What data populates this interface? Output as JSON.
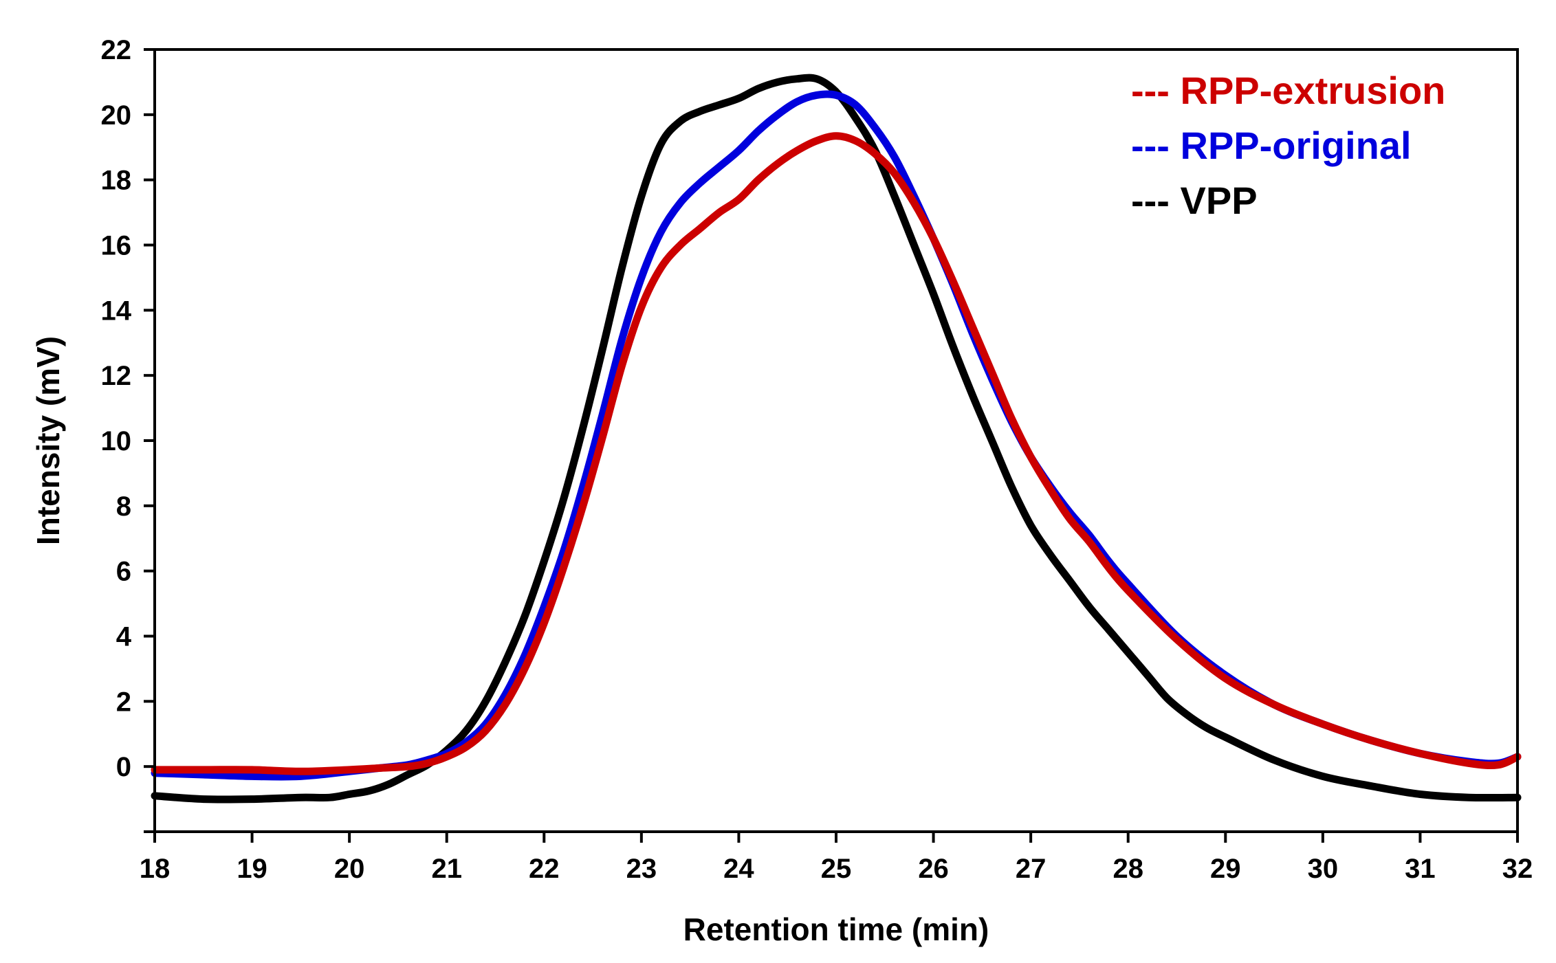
{
  "chart_data": {
    "type": "line",
    "title": "",
    "xlabel": "Retention time (min)",
    "ylabel": "Intensity (mV)",
    "xlim": [
      18,
      32
    ],
    "ylim": [
      -2,
      22
    ],
    "xticks": [
      18,
      19,
      20,
      21,
      22,
      23,
      24,
      25,
      26,
      27,
      28,
      29,
      30,
      31,
      32
    ],
    "yticks": [
      0,
      2,
      4,
      6,
      8,
      10,
      12,
      14,
      16,
      18,
      20,
      22
    ],
    "grid": false,
    "legend_position": "top-right",
    "series": [
      {
        "name": "VPP",
        "legend_label": "--- VPP",
        "color": "#000000",
        "x": [
          18,
          18.5,
          19,
          19.5,
          19.8,
          20,
          20.2,
          20.4,
          20.6,
          20.8,
          21,
          21.2,
          21.4,
          21.6,
          21.8,
          22,
          22.2,
          22.4,
          22.6,
          22.8,
          23,
          23.2,
          23.4,
          23.6,
          23.8,
          24,
          24.2,
          24.4,
          24.6,
          24.8,
          25,
          25.2,
          25.4,
          25.6,
          25.8,
          26,
          26.2,
          26.4,
          26.6,
          26.8,
          27,
          27.2,
          27.4,
          27.6,
          27.8,
          28,
          28.2,
          28.4,
          28.6,
          28.8,
          29,
          29.5,
          30,
          30.5,
          31,
          31.5,
          32
        ],
        "y": [
          -0.9,
          -1.0,
          -1.0,
          -0.95,
          -0.95,
          -0.85,
          -0.75,
          -0.55,
          -0.25,
          0.05,
          0.5,
          1.1,
          2.0,
          3.2,
          4.6,
          6.3,
          8.2,
          10.4,
          12.8,
          15.3,
          17.5,
          19.1,
          19.8,
          20.1,
          20.3,
          20.5,
          20.8,
          21.0,
          21.1,
          21.1,
          20.7,
          19.9,
          18.9,
          17.5,
          16.0,
          14.5,
          12.9,
          11.4,
          10.0,
          8.6,
          7.4,
          6.5,
          5.7,
          4.9,
          4.2,
          3.5,
          2.8,
          2.1,
          1.6,
          1.2,
          0.9,
          0.2,
          -0.3,
          -0.6,
          -0.85,
          -0.95,
          -0.95
        ]
      },
      {
        "name": "RPP-original",
        "legend_label": "--- RPP-original",
        "color": "#0000dd",
        "x": [
          18,
          18.5,
          19,
          19.5,
          20,
          20.3,
          20.6,
          20.8,
          21,
          21.2,
          21.4,
          21.6,
          21.8,
          22,
          22.2,
          22.4,
          22.6,
          22.8,
          23,
          23.2,
          23.4,
          23.6,
          23.8,
          24,
          24.2,
          24.4,
          24.6,
          24.8,
          25,
          25.2,
          25.4,
          25.6,
          25.8,
          26,
          26.2,
          26.4,
          26.6,
          26.8,
          27,
          27.2,
          27.4,
          27.6,
          27.8,
          28,
          28.5,
          29,
          29.5,
          30,
          30.5,
          31,
          31.5,
          31.8,
          32
        ],
        "y": [
          -0.2,
          -0.25,
          -0.3,
          -0.3,
          -0.15,
          -0.05,
          0.05,
          0.2,
          0.4,
          0.75,
          1.3,
          2.2,
          3.4,
          4.9,
          6.6,
          8.6,
          10.8,
          13.1,
          15.0,
          16.4,
          17.3,
          17.9,
          18.4,
          18.9,
          19.5,
          20.0,
          20.4,
          20.6,
          20.6,
          20.3,
          19.6,
          18.7,
          17.5,
          16.2,
          14.8,
          13.3,
          11.9,
          10.6,
          9.5,
          8.6,
          7.8,
          7.1,
          6.3,
          5.6,
          4.0,
          2.8,
          1.9,
          1.3,
          0.8,
          0.4,
          0.15,
          0.1,
          0.3
        ]
      },
      {
        "name": "RPP-extrusion",
        "legend_label": "--- RPP-extrusion",
        "color": "#cc0000",
        "x": [
          18,
          18.5,
          19,
          19.5,
          20,
          20.3,
          20.6,
          20.8,
          21,
          21.2,
          21.4,
          21.6,
          21.8,
          22,
          22.2,
          22.4,
          22.6,
          22.8,
          23,
          23.2,
          23.4,
          23.6,
          23.8,
          24,
          24.2,
          24.4,
          24.6,
          24.8,
          25,
          25.2,
          25.4,
          25.6,
          25.8,
          26,
          26.2,
          26.4,
          26.6,
          26.8,
          27,
          27.2,
          27.4,
          27.6,
          27.8,
          28,
          28.5,
          29,
          29.5,
          30,
          30.5,
          31,
          31.5,
          31.8,
          32
        ],
        "y": [
          -0.1,
          -0.1,
          -0.1,
          -0.15,
          -0.1,
          -0.05,
          0.0,
          0.1,
          0.3,
          0.6,
          1.1,
          1.9,
          3.0,
          4.4,
          6.1,
          8.0,
          10.1,
          12.3,
          14.1,
          15.3,
          16.0,
          16.5,
          17.0,
          17.4,
          18.0,
          18.5,
          18.9,
          19.2,
          19.35,
          19.2,
          18.8,
          18.2,
          17.3,
          16.2,
          14.9,
          13.5,
          12.1,
          10.7,
          9.5,
          8.5,
          7.6,
          6.9,
          6.1,
          5.4,
          3.9,
          2.7,
          1.9,
          1.3,
          0.8,
          0.4,
          0.1,
          0.05,
          0.3
        ]
      }
    ],
    "legend_order": [
      "RPP-extrusion",
      "RPP-original",
      "VPP"
    ]
  }
}
